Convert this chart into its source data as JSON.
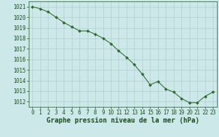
{
  "x": [
    0,
    1,
    2,
    3,
    4,
    5,
    6,
    7,
    8,
    9,
    10,
    11,
    12,
    13,
    14,
    15,
    16,
    17,
    18,
    19,
    20,
    21,
    22,
    23
  ],
  "y": [
    1021.0,
    1020.8,
    1020.5,
    1020.0,
    1019.5,
    1019.1,
    1018.7,
    1018.7,
    1018.4,
    1018.0,
    1017.5,
    1016.8,
    1016.2,
    1015.5,
    1014.6,
    1013.6,
    1013.9,
    1013.2,
    1012.9,
    1012.3,
    1011.9,
    1011.9,
    1012.5,
    1012.9
  ],
  "ylim": [
    1011.5,
    1021.5
  ],
  "xlim": [
    -0.5,
    23.5
  ],
  "yticks": [
    1012,
    1013,
    1014,
    1015,
    1016,
    1017,
    1018,
    1019,
    1020,
    1021
  ],
  "xticks": [
    0,
    1,
    2,
    3,
    4,
    5,
    6,
    7,
    8,
    9,
    10,
    11,
    12,
    13,
    14,
    15,
    16,
    17,
    18,
    19,
    20,
    21,
    22,
    23
  ],
  "xlabel": "Graphe pression niveau de la mer (hPa)",
  "line_color": "#2d6b2d",
  "marker_color": "#2d6b2d",
  "bg_color": "#cce8e8",
  "grid_color": "#b0cccc",
  "text_color": "#1a4d1a",
  "tick_label_fontsize": 5.5,
  "xlabel_fontsize": 7.0
}
